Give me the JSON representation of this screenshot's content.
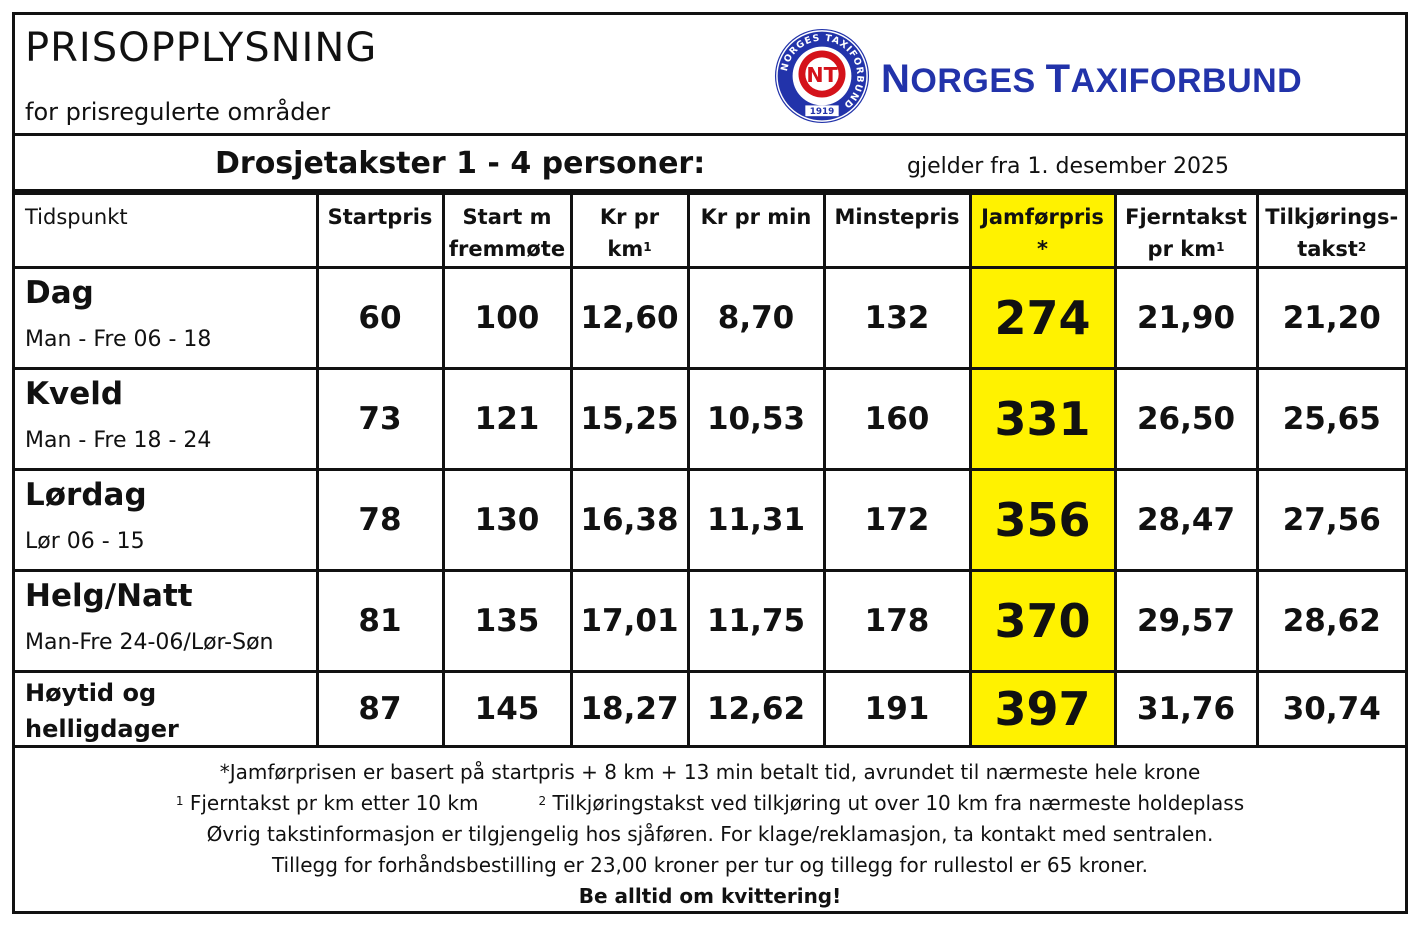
{
  "header": {
    "title": "PRISOPPLYSNING",
    "subtitle": "for prisregulerte områder",
    "brand_first_initial": "N",
    "brand_first_rest": "ORGES ",
    "brand_second_initial": "T",
    "brand_second_rest": "AXIFORBUND",
    "logo_ring_text": "NORGES TAXIFORBUND",
    "logo_year": "1919",
    "logo_mark": "NT"
  },
  "headline": {
    "text": "Drosjetakster 1 - 4 personer:",
    "valid_from": "gjelder fra 1. desember 2025"
  },
  "table": {
    "columns": {
      "period": "Tidspunkt",
      "start": "Startpris",
      "start_m_line1": "Start m",
      "start_m_line2": "fremmøte",
      "km_line1": "Kr pr",
      "km_line2": "km",
      "km_sup": "1",
      "min": "Kr pr min",
      "minimum": "Minstepris",
      "jamfor_line1": "Jamførpris",
      "jamfor_line2": "*",
      "fjern_line1": "Fjerntakst",
      "fjern_line2": "pr km",
      "fjern_sup": "1",
      "tilk_line1": "Tilkjørings-",
      "tilk_line2": "takst",
      "tilk_sup": "2"
    },
    "rows": [
      {
        "name": "Dag",
        "time": "Man - Fre 06 - 18",
        "start": "60",
        "start_m": "100",
        "km": "12,60",
        "min": "8,70",
        "minimum": "132",
        "jamfor": "274",
        "fjern": "21,90",
        "tilk": "21,20"
      },
      {
        "name": "Kveld",
        "time": "Man - Fre 18 - 24",
        "start": "73",
        "start_m": "121",
        "km": "15,25",
        "min": "10,53",
        "minimum": "160",
        "jamfor": "331",
        "fjern": "26,50",
        "tilk": "25,65"
      },
      {
        "name": "Lørdag",
        "time": "Lør 06 - 15",
        "start": "78",
        "start_m": "130",
        "km": "16,38",
        "min": "11,31",
        "minimum": "172",
        "jamfor": "356",
        "fjern": "28,47",
        "tilk": "27,56"
      },
      {
        "name": "Helg/Natt",
        "time": "Man-Fre 24-06/Lør-Søn",
        "start": "81",
        "start_m": "135",
        "km": "17,01",
        "min": "11,75",
        "minimum": "178",
        "jamfor": "370",
        "fjern": "29,57",
        "tilk": "28,62"
      },
      {
        "name": "Høytid og helligdager",
        "start": "87",
        "start_m": "145",
        "km": "18,27",
        "min": "12,62",
        "minimum": "191",
        "jamfor": "397",
        "fjern": "31,76",
        "tilk": "30,74"
      }
    ],
    "highlight_color": "#fff200"
  },
  "footer": {
    "note_jamfor": "*Jamførprisen er basert på startpris + 8 km + 13 min betalt tid, avrundet til nærmeste hele krone",
    "note1_sup": "1",
    "note1": "Fjerntakst pr km etter 10 km",
    "note2_sup": "2",
    "note2": "Tilkjøringstakst ved tilkjøring ut over 10 km fra nærmeste holdeplass",
    "info": "Øvrig takstinformasjon er tilgjengelig hos sjåføren. For klage/reklamasjon, ta kontakt med sentralen.",
    "extras": "Tillegg for forhåndsbestilling er 23,00 kroner per tur og tillegg for rullestol er 65 kroner.",
    "receipt": "Be alltid om kvittering!"
  },
  "colors": {
    "brand_blue": "#2233aa",
    "logo_red": "#d4121a",
    "highlight": "#fff200"
  }
}
